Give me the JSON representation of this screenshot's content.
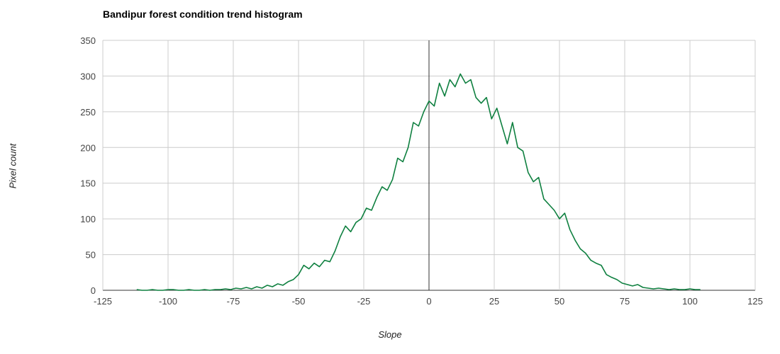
{
  "chart": {
    "title": "Bandipur forest condition trend histogram",
    "xlabel": "Slope",
    "ylabel": "Pixel count"
  },
  "chart_data": {
    "type": "line",
    "title": "Bandipur forest condition trend histogram",
    "xlabel": "Slope",
    "ylabel": "Pixel count",
    "xlim": [
      -125,
      125
    ],
    "ylim": [
      0,
      350
    ],
    "x_ticks": [
      -125,
      -100,
      -75,
      -50,
      -25,
      0,
      25,
      50,
      75,
      100,
      125
    ],
    "y_ticks": [
      0,
      50,
      100,
      150,
      200,
      250,
      300,
      350
    ],
    "grid": true,
    "legend": "none",
    "line_color": "#0f8040",
    "gridline_color": "#cccccc",
    "baseline_color": "#333333",
    "x": [
      -112,
      -110,
      -108,
      -106,
      -104,
      -102,
      -100,
      -98,
      -96,
      -94,
      -92,
      -90,
      -88,
      -86,
      -84,
      -82,
      -80,
      -78,
      -76,
      -74,
      -72,
      -70,
      -68,
      -66,
      -64,
      -62,
      -60,
      -58,
      -56,
      -54,
      -52,
      -50,
      -48,
      -46,
      -44,
      -42,
      -40,
      -38,
      -36,
      -34,
      -32,
      -30,
      -28,
      -26,
      -24,
      -22,
      -20,
      -18,
      -16,
      -14,
      -12,
      -10,
      -8,
      -6,
      -4,
      -2,
      0,
      2,
      4,
      6,
      8,
      10,
      12,
      14,
      16,
      18,
      20,
      22,
      24,
      26,
      28,
      30,
      32,
      34,
      36,
      38,
      40,
      42,
      44,
      46,
      48,
      50,
      52,
      54,
      56,
      58,
      60,
      62,
      64,
      66,
      68,
      70,
      72,
      74,
      76,
      78,
      80,
      82,
      84,
      86,
      88,
      90,
      92,
      94,
      96,
      98,
      100,
      102,
      104
    ],
    "y": [
      1,
      0,
      0,
      1,
      0,
      0,
      1,
      1,
      0,
      0,
      1,
      0,
      0,
      1,
      0,
      1,
      1,
      2,
      1,
      3,
      2,
      4,
      2,
      5,
      3,
      7,
      5,
      9,
      7,
      12,
      15,
      22,
      35,
      30,
      38,
      33,
      42,
      40,
      55,
      75,
      90,
      82,
      95,
      100,
      115,
      112,
      130,
      145,
      140,
      155,
      185,
      180,
      200,
      235,
      230,
      250,
      265,
      258,
      290,
      272,
      295,
      285,
      303,
      290,
      295,
      270,
      262,
      270,
      240,
      255,
      230,
      205,
      235,
      200,
      195,
      165,
      152,
      158,
      128,
      120,
      112,
      100,
      108,
      85,
      70,
      58,
      52,
      42,
      38,
      35,
      22,
      18,
      15,
      10,
      8,
      6,
      8,
      4,
      3,
      2,
      3,
      2,
      1,
      2,
      1,
      1,
      2,
      1,
      1
    ]
  }
}
